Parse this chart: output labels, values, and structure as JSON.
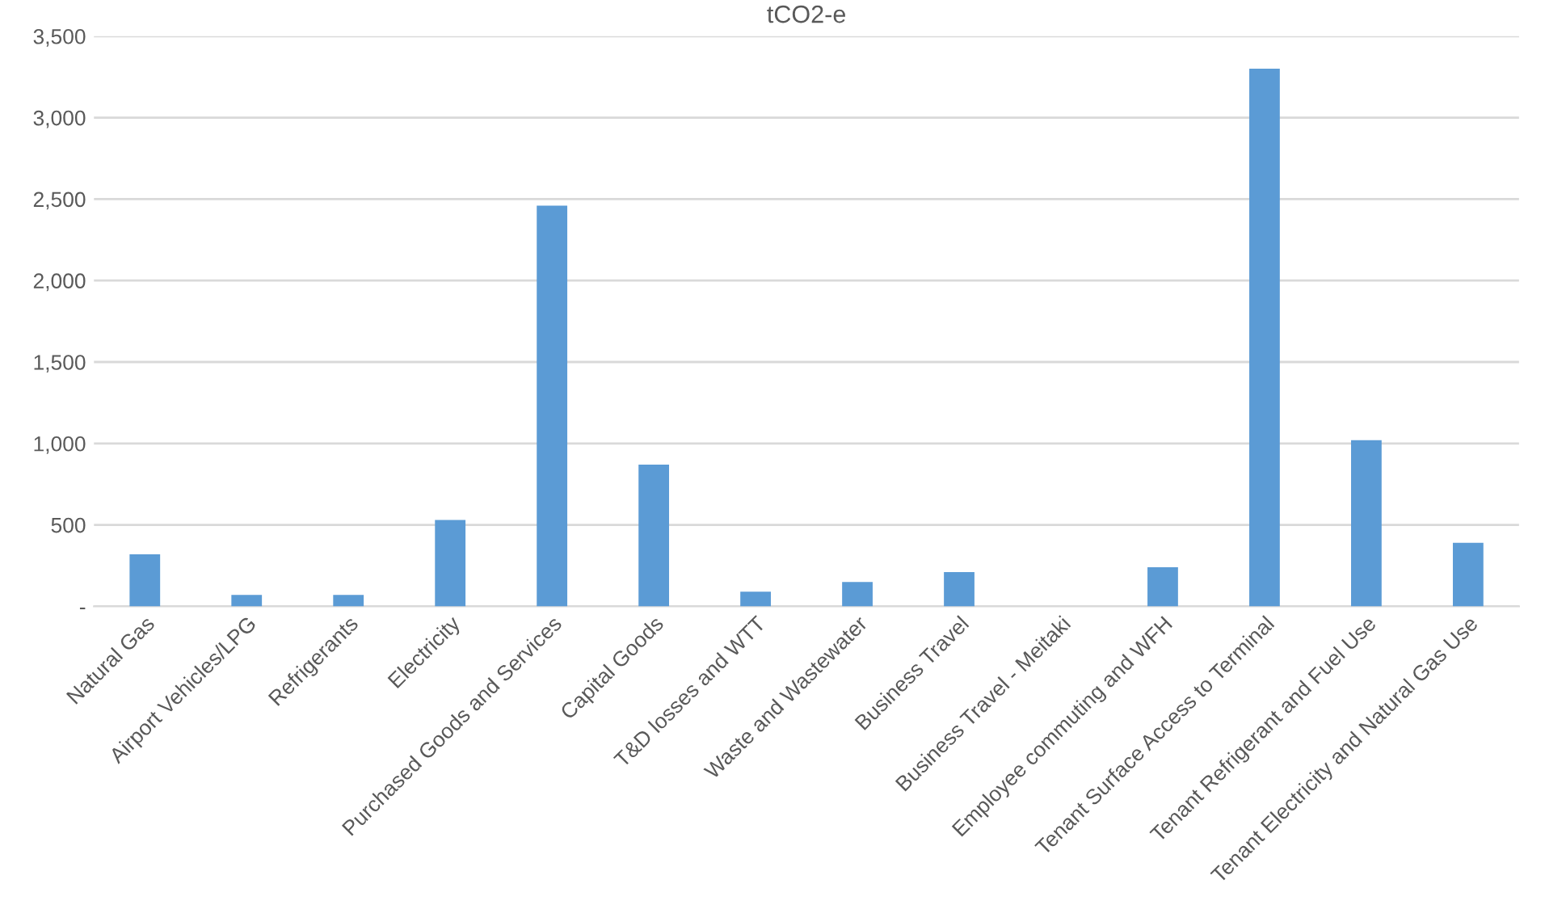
{
  "chart_data": {
    "type": "bar",
    "title": "tCO2-e",
    "categories": [
      "Natural Gas",
      "Airport Vehicles/LPG",
      "Refrigerants",
      "Electricity",
      "Purchased Goods and Services",
      "Capital Goods",
      "T&D losses and WTT",
      "Waste and Wastewater",
      "Business Travel",
      "Business Travel - Meitaki",
      "Employee commuting and WFH",
      "Tenant Surface Access to Terminal",
      "Tenant Refrigerant and Fuel Use",
      "Tenant Electricity and Natural Gas Use"
    ],
    "values": [
      320,
      70,
      70,
      530,
      2460,
      870,
      90,
      150,
      210,
      0,
      240,
      3300,
      1020,
      390
    ],
    "color": "#5b9bd5",
    "ylim": [
      0,
      3500
    ],
    "yticks": [
      {
        "value": 0,
        "label": "-"
      },
      {
        "value": 500,
        "label": "500"
      },
      {
        "value": 1000,
        "label": "1,000"
      },
      {
        "value": 1500,
        "label": "1,500"
      },
      {
        "value": 2000,
        "label": "2,000"
      },
      {
        "value": 2500,
        "label": "2,500"
      },
      {
        "value": 3000,
        "label": "3,000"
      },
      {
        "value": 3500,
        "label": "3,500"
      }
    ],
    "grid": "y"
  }
}
